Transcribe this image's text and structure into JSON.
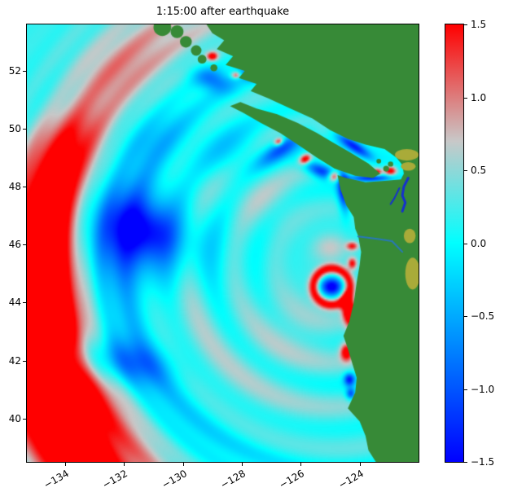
{
  "figure": {
    "title": "1:15:00 after earthquake",
    "background": "#ffffff"
  },
  "axes": {
    "xlim": [
      -135.3,
      -122.0
    ],
    "ylim": [
      38.5,
      53.6
    ],
    "xticks": [
      {
        "value": -134,
        "label": "−134"
      },
      {
        "value": -132,
        "label": "−132"
      },
      {
        "value": -130,
        "label": "−130"
      },
      {
        "value": -128,
        "label": "−128"
      },
      {
        "value": -126,
        "label": "−126"
      },
      {
        "value": -124,
        "label": "−124"
      }
    ],
    "yticks": [
      {
        "value": 40,
        "label": "40"
      },
      {
        "value": 42,
        "label": "42"
      },
      {
        "value": 44,
        "label": "44"
      },
      {
        "value": 46,
        "label": "46"
      },
      {
        "value": 48,
        "label": "48"
      },
      {
        "value": 50,
        "label": "50"
      },
      {
        "value": 52,
        "label": "52"
      }
    ],
    "xtick_rotation_deg": 30
  },
  "colorbar": {
    "vmin": -1.5,
    "vmax": 1.5,
    "position": "right",
    "ticks": [
      {
        "value": 1.5,
        "label": "1.5"
      },
      {
        "value": 1.0,
        "label": "1.0"
      },
      {
        "value": 0.5,
        "label": "0.5"
      },
      {
        "value": 0.0,
        "label": "0.0"
      },
      {
        "value": -0.5,
        "label": "−0.5"
      },
      {
        "value": -1.0,
        "label": "−1.0"
      },
      {
        "value": -1.5,
        "label": "−1.5"
      }
    ]
  },
  "chart_data": {
    "type": "heatmap",
    "title": "1:15:00 after earthquake",
    "description": "Map-view heatmap of a simulated tsunami wave field off the Cascadia / Pacific Northwest coast 1:15:00 after the earthquake. Color shows wave amplitude from -1.5 (blue) through 0 (cyan) to +1.5 (red); land is green. A red leading wavefront has propagated west to about longitude -134, a large blue drawdown sits near (-131.4, 46.4), and strong red/blue amplitudes hug the coast, straits and harbors.",
    "xlabel": "",
    "ylabel": "",
    "xlim": [
      -135.3,
      -122.0
    ],
    "ylim": [
      38.5,
      53.6
    ],
    "xticks": [
      -134,
      -132,
      -130,
      -128,
      -126,
      -124
    ],
    "yticks": [
      40,
      42,
      44,
      46,
      48,
      50,
      52
    ],
    "value_range": [
      -1.5,
      1.5
    ],
    "colormap": [
      [
        -1.5,
        "#0000ff"
      ],
      [
        0.0,
        "#00ffff"
      ],
      [
        0.7,
        "#c8c8c8"
      ],
      [
        1.5,
        "#ff0000"
      ]
    ],
    "land_color": "#378a37",
    "lowland_color": "#a9ab39",
    "ocean_base_value": 0.18,
    "epicenter": {
      "lon": -124.9,
      "lat": 45.3
    },
    "wave_features": {
      "rings": [
        {
          "cx": -124.9,
          "cy": 45.3,
          "r": 9.9,
          "w": 1.15,
          "amp": 2.5,
          "az": 187,
          "spread": 38
        },
        {
          "cx": -124.9,
          "cy": 45.3,
          "r": 11.3,
          "w": 1.0,
          "amp": 1.6,
          "az": 215,
          "spread": 25
        },
        {
          "cx": -124.9,
          "cy": 45.3,
          "r": 9.7,
          "w": 1.4,
          "amp": 0.5,
          "az": 138,
          "spread": 40
        },
        {
          "cx": -124.9,
          "cy": 45.3,
          "r": 7.6,
          "w": 1.2,
          "amp": -0.55,
          "az": 195,
          "spread": 65
        },
        {
          "cx": -124.9,
          "cy": 45.3,
          "r": 8.6,
          "w": 0.8,
          "amp": 0.45,
          "az": 212,
          "spread": 30
        },
        {
          "cx": -124.9,
          "cy": 45.3,
          "r": 5.3,
          "w": 0.7,
          "amp": 0.3,
          "az": 205,
          "spread": 70
        },
        {
          "cx": -124.95,
          "cy": 44.55,
          "r": 0.62,
          "w": 0.18,
          "amp": 1.4
        }
      ],
      "spots": [
        {
          "cx": -131.4,
          "cy": 46.4,
          "sx": 2.0,
          "sy": 1.5,
          "rot": -20,
          "amp": -1.25
        },
        {
          "cx": -131.3,
          "cy": 46.5,
          "sx": 1.0,
          "sy": 0.75,
          "rot": -20,
          "amp": -0.5
        },
        {
          "cx": -133.3,
          "cy": 42.1,
          "sx": 1.5,
          "sy": 0.8,
          "rot": -15,
          "amp": -0.75
        },
        {
          "cx": -131.5,
          "cy": 41.9,
          "sx": 1.2,
          "sy": 0.7,
          "rot": -15,
          "amp": -0.55
        },
        {
          "cx": -133.5,
          "cy": 50.8,
          "sx": 1.6,
          "sy": 1.1,
          "rot": 20,
          "amp": -0.4
        },
        {
          "cx": -131.0,
          "cy": 49.6,
          "sx": 1.4,
          "sy": 0.9,
          "rot": 25,
          "amp": -0.35
        },
        {
          "cx": -128.4,
          "cy": 49.2,
          "sx": 1.2,
          "sy": 0.8,
          "rot": 35,
          "amp": -0.5
        },
        {
          "cx": -126.6,
          "cy": 49.35,
          "sx": 0.95,
          "sy": 0.3,
          "rot": 35,
          "amp": -1.1
        },
        {
          "cx": -125.3,
          "cy": 48.55,
          "sx": 0.6,
          "sy": 0.25,
          "rot": -20,
          "amp": -1.5
        },
        {
          "cx": -123.6,
          "cy": 48.3,
          "sx": 0.75,
          "sy": 0.13,
          "rot": 0,
          "amp": -1.6
        },
        {
          "cx": -124.55,
          "cy": 47.9,
          "sx": 0.2,
          "sy": 0.8,
          "rot": 5,
          "amp": -1.5
        },
        {
          "cx": -124.95,
          "cy": 44.55,
          "sx": 0.38,
          "sy": 0.32,
          "rot": 0,
          "amp": -1.9
        },
        {
          "cx": -124.35,
          "cy": 43.7,
          "sx": 0.22,
          "sy": 0.55,
          "rot": 10,
          "amp": 2.2
        },
        {
          "cx": -124.45,
          "cy": 42.3,
          "sx": 0.2,
          "sy": 0.3,
          "rot": 0,
          "amp": 1.6
        },
        {
          "cx": -124.35,
          "cy": 41.35,
          "sx": 0.18,
          "sy": 0.22,
          "rot": 0,
          "amp": -1.4
        },
        {
          "cx": -124.3,
          "cy": 40.85,
          "sx": 0.16,
          "sy": 0.2,
          "rot": 0,
          "amp": -1.2
        },
        {
          "cx": -124.85,
          "cy": 48.35,
          "sx": 0.22,
          "sy": 0.18,
          "rot": 0,
          "amp": 1.8
        },
        {
          "cx": -125.85,
          "cy": 48.95,
          "sx": 0.22,
          "sy": 0.16,
          "rot": 30,
          "amp": 1.7
        },
        {
          "cx": -126.75,
          "cy": 49.55,
          "sx": 0.16,
          "sy": 0.12,
          "rot": 30,
          "amp": 1.4
        },
        {
          "cx": -122.95,
          "cy": 48.55,
          "sx": 0.2,
          "sy": 0.15,
          "rot": 0,
          "amp": 1.6
        },
        {
          "cx": -123.4,
          "cy": 48.5,
          "sx": 0.15,
          "sy": 0.12,
          "rot": 0,
          "amp": 1.3
        },
        {
          "cx": -124.2,
          "cy": 49.4,
          "sx": 0.7,
          "sy": 0.18,
          "rot": -35,
          "amp": -1.3
        },
        {
          "cx": -129.0,
          "cy": 51.7,
          "sx": 0.7,
          "sy": 0.4,
          "rot": -20,
          "amp": -0.9
        },
        {
          "cx": -127.7,
          "cy": 51.95,
          "sx": 0.5,
          "sy": 0.3,
          "rot": -20,
          "amp": -0.8
        },
        {
          "cx": -129.0,
          "cy": 52.5,
          "sx": 0.18,
          "sy": 0.14,
          "rot": 0,
          "amp": 1.5
        },
        {
          "cx": -128.2,
          "cy": 51.85,
          "sx": 0.16,
          "sy": 0.12,
          "rot": 0,
          "amp": 1.2
        },
        {
          "cx": -124.25,
          "cy": 45.95,
          "sx": 0.2,
          "sy": 0.15,
          "rot": 0,
          "amp": 1.2
        },
        {
          "cx": -124.25,
          "cy": 45.35,
          "sx": 0.15,
          "sy": 0.2,
          "rot": 0,
          "amp": 1.3
        },
        {
          "cx": -125.0,
          "cy": 45.9,
          "sx": 0.6,
          "sy": 0.5,
          "rot": 0,
          "amp": 0.5
        },
        {
          "cx": -126.3,
          "cy": 43.0,
          "sx": 1.8,
          "sy": 1.6,
          "rot": 0,
          "amp": 0.3
        },
        {
          "cx": -127.3,
          "cy": 47.6,
          "sx": 1.3,
          "sy": 1.0,
          "rot": 0,
          "amp": 0.28
        }
      ],
      "ripples": [
        {
          "cx": -124.9,
          "cy": 45.3,
          "wavelength": 1.5,
          "amp": 0.22,
          "r0": 1.5,
          "r1": 7.5
        },
        {
          "cx": -124.9,
          "cy": 45.3,
          "wavelength": 0.9,
          "amp": 0.12,
          "r0": 7.0,
          "r1": 12.5
        }
      ]
    },
    "geography": {
      "mainland": [
        [
          -122.0,
          53.6
        ],
        [
          -129.2,
          53.6
        ],
        [
          -129.0,
          53.3
        ],
        [
          -128.6,
          53.05
        ],
        [
          -128.85,
          52.75
        ],
        [
          -128.3,
          52.5
        ],
        [
          -128.55,
          52.2
        ],
        [
          -127.9,
          52.0
        ],
        [
          -128.1,
          51.75
        ],
        [
          -127.5,
          51.55
        ],
        [
          -127.7,
          51.3
        ],
        [
          -127.1,
          51.05
        ],
        [
          -126.35,
          50.7
        ],
        [
          -125.6,
          50.35
        ],
        [
          -125.0,
          49.95
        ],
        [
          -124.4,
          49.65
        ],
        [
          -123.8,
          49.45
        ],
        [
          -123.15,
          49.3
        ],
        [
          -122.75,
          49.0
        ],
        [
          -122.55,
          48.75
        ],
        [
          -122.5,
          48.45
        ],
        [
          -122.6,
          48.25
        ],
        [
          -123.15,
          48.2
        ],
        [
          -123.8,
          48.15
        ],
        [
          -124.45,
          48.3
        ],
        [
          -124.75,
          48.4
        ],
        [
          -124.65,
          47.9
        ],
        [
          -124.45,
          47.35
        ],
        [
          -124.2,
          46.95
        ],
        [
          -124.15,
          46.55
        ],
        [
          -124.05,
          46.3
        ],
        [
          -123.95,
          45.75
        ],
        [
          -124.0,
          45.3
        ],
        [
          -124.1,
          44.7
        ],
        [
          -124.2,
          44.0
        ],
        [
          -124.35,
          43.35
        ],
        [
          -124.55,
          42.85
        ],
        [
          -124.4,
          42.4
        ],
        [
          -124.25,
          41.9
        ],
        [
          -124.1,
          41.4
        ],
        [
          -124.15,
          40.9
        ],
        [
          -124.4,
          40.35
        ],
        [
          -124.0,
          39.9
        ],
        [
          -123.8,
          39.4
        ],
        [
          -123.7,
          38.9
        ],
        [
          -123.45,
          38.5
        ],
        [
          -122.0,
          38.5
        ]
      ],
      "vancouver_island": [
        [
          -128.4,
          50.78
        ],
        [
          -127.95,
          50.55
        ],
        [
          -127.35,
          50.2
        ],
        [
          -126.7,
          49.85
        ],
        [
          -126.1,
          49.45
        ],
        [
          -125.45,
          49.0
        ],
        [
          -124.85,
          48.62
        ],
        [
          -124.15,
          48.38
        ],
        [
          -123.55,
          48.3
        ],
        [
          -123.3,
          48.45
        ],
        [
          -123.7,
          48.8
        ],
        [
          -124.35,
          49.2
        ],
        [
          -124.95,
          49.55
        ],
        [
          -125.45,
          49.85
        ],
        [
          -126.1,
          50.2
        ],
        [
          -126.8,
          50.5
        ],
        [
          -127.5,
          50.7
        ],
        [
          -128.05,
          50.92
        ]
      ],
      "islands": [
        {
          "cx": -130.7,
          "cy": 53.5,
          "r": 0.3
        },
        {
          "cx": -130.2,
          "cy": 53.35,
          "r": 0.22
        },
        {
          "cx": -129.9,
          "cy": 53.0,
          "r": 0.2
        },
        {
          "cx": -129.55,
          "cy": 52.7,
          "r": 0.18
        },
        {
          "cx": -129.35,
          "cy": 52.4,
          "r": 0.15
        },
        {
          "cx": -128.95,
          "cy": 52.1,
          "r": 0.12
        },
        {
          "cx": -123.1,
          "cy": 48.62,
          "r": 0.1
        },
        {
          "cx": -122.95,
          "cy": 48.78,
          "r": 0.09
        },
        {
          "cx": -123.35,
          "cy": 48.88,
          "r": 0.08
        }
      ],
      "lowland_patches": [
        {
          "cx": -122.4,
          "cy": 49.1,
          "rx": 0.4,
          "ry": 0.2
        },
        {
          "cx": -122.35,
          "cy": 48.7,
          "rx": 0.25,
          "ry": 0.15
        },
        {
          "cx": -122.2,
          "cy": 45.0,
          "rx": 0.25,
          "ry": 0.55
        },
        {
          "cx": -122.3,
          "cy": 46.3,
          "rx": 0.2,
          "ry": 0.25
        }
      ],
      "inland_waters": [
        {
          "points": [
            [
              -122.35,
              48.3
            ],
            [
              -122.5,
              48.0
            ],
            [
              -122.55,
              47.7
            ],
            [
              -122.45,
              47.45
            ],
            [
              -122.55,
              47.15
            ]
          ],
          "width": 3,
          "color": "#1530d0"
        },
        {
          "points": [
            [
              -122.65,
              47.95
            ],
            [
              -122.82,
              47.6
            ],
            [
              -122.95,
              47.4
            ]
          ],
          "width": 2,
          "color": "#1530d0"
        },
        {
          "points": [
            [
              -124.05,
              46.28
            ],
            [
              -123.4,
              46.2
            ],
            [
              -122.9,
              46.12
            ],
            [
              -122.55,
              45.75
            ]
          ],
          "width": 2,
          "color": "#2878b8"
        }
      ]
    }
  }
}
